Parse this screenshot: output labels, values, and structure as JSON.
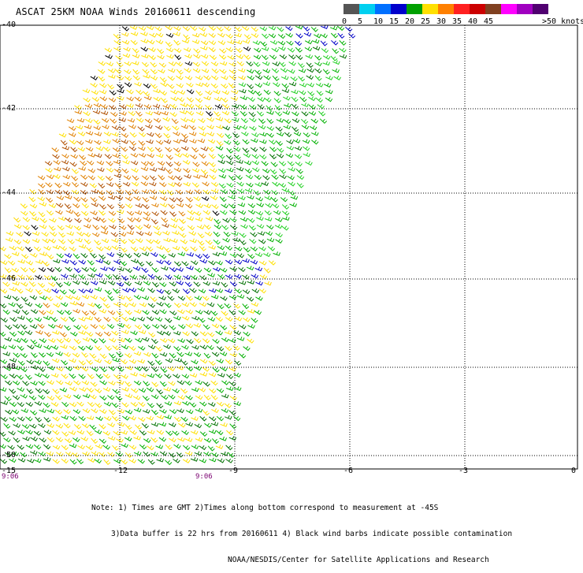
{
  "title": "ASCAT 25KM NOAA Winds 20160611 descending",
  "colorbar": {
    "segments": [
      {
        "label": "0",
        "color": "#555555"
      },
      {
        "label": "5",
        "color": "#00d0f0"
      },
      {
        "label": "10",
        "color": "#0070ff"
      },
      {
        "label": "15",
        "color": "#0000cc"
      },
      {
        "label": "20",
        "color": "#00a000"
      },
      {
        "label": "25",
        "color": "#ffe000"
      },
      {
        "label": "30",
        "color": "#ff8000"
      },
      {
        "label": "35",
        "color": "#ff2020"
      },
      {
        "label": "40",
        "color": "#cc0000"
      },
      {
        "label": "45",
        "color": "#804020"
      },
      {
        "label": "",
        "color": "#ff00ff"
      },
      {
        "label": "",
        "color": "#a000c0"
      },
      {
        "label": "",
        "color": "#500070"
      }
    ],
    "end_label": ">50 knots"
  },
  "lat_labels": [
    "-40",
    "-42",
    "-44",
    "-46",
    "-48",
    "-50"
  ],
  "lon_labels": [
    "-15",
    "-12",
    "-9",
    "-6",
    "-3",
    "0"
  ],
  "time_labels": [
    "9:06",
    "9:06"
  ],
  "notes": [
    "Note: 1) Times are GMT 2)Times along bottom correspond to measurement at -45S",
    "3)Data buffer is 22 hrs from 20160611 4) Black wind barbs indicate possible contamination",
    "NOAA/NESDIS/Center for Satellite Applications and Research"
  ],
  "wind_colors": {
    "blue": "#0000c8",
    "green_dark": "#007000",
    "green": "#00b000",
    "green_light": "#20d020",
    "yellow": "#ffe000",
    "yellow_pale": "#ffd800",
    "orange": "#e08000",
    "brown": "#b05000",
    "black": "#000000"
  }
}
